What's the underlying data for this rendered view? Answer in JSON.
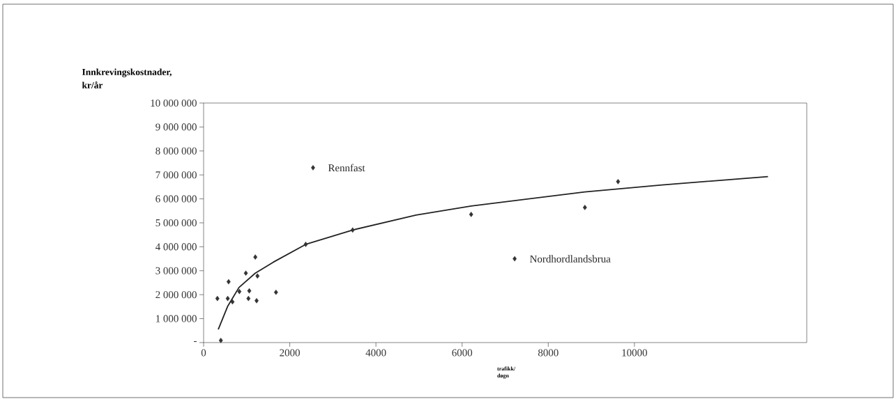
{
  "chart_data": {
    "type": "scatter",
    "ylabel": "Innkrevingskostnader, kr/år",
    "xlabel": "trafikk/ døgn",
    "xlim": [
      0,
      14000
    ],
    "xticks": [
      0,
      2000,
      4000,
      6000,
      8000,
      10000
    ],
    "ylim": [
      0,
      10000000
    ],
    "yticks": [
      {
        "value": 0,
        "label": "-"
      },
      {
        "value": 1000000,
        "label": "1 000 000"
      },
      {
        "value": 2000000,
        "label": "2 000 000"
      },
      {
        "value": 3000000,
        "label": "3 000 000"
      },
      {
        "value": 4000000,
        "label": "4 000 000"
      },
      {
        "value": 5000000,
        "label": "5 000 000"
      },
      {
        "value": 6000000,
        "label": "6 000 000"
      },
      {
        "value": 7000000,
        "label": "7 000 000"
      },
      {
        "value": 8000000,
        "label": "8 000 000"
      },
      {
        "value": 9000000,
        "label": "9 000 000"
      },
      {
        "value": 10000000,
        "label": "10 000 000"
      }
    ],
    "grid": false,
    "series": [
      {
        "color": "#333333",
        "marker": "diamond",
        "x": [
          320,
          580,
          560,
          670,
          830,
          980,
          1060,
          1040,
          1200,
          1250,
          1230,
          1680,
          400,
          2370,
          2540,
          3460,
          6210,
          7220,
          8850,
          9620
        ],
        "values": [
          1840000,
          2540000,
          1840000,
          1700000,
          2130000,
          2900000,
          2160000,
          1840000,
          3570000,
          2780000,
          1750000,
          2100000,
          90000,
          4100000,
          7300000,
          4700000,
          5350000,
          3500000,
          5640000,
          6720000
        ]
      },
      {
        "type": "line",
        "color": "#222222",
        "marker": "none",
        "line_style": "solid",
        "x": [
          340,
          560,
          820,
          1200,
          1620,
          2370,
          3460,
          4930,
          6210,
          8850,
          10640,
          13100
        ],
        "values": [
          550000,
          1520000,
          2300000,
          2900000,
          3360000,
          4100000,
          4700000,
          5320000,
          5700000,
          6290000,
          6580000,
          6930000
        ]
      }
    ],
    "annotations": [
      {
        "text": "Rennfast",
        "x": 2540,
        "y": 7300000
      },
      {
        "text": "Nordhordlandsbrua",
        "x": 7220,
        "y": 3500000
      }
    ]
  }
}
